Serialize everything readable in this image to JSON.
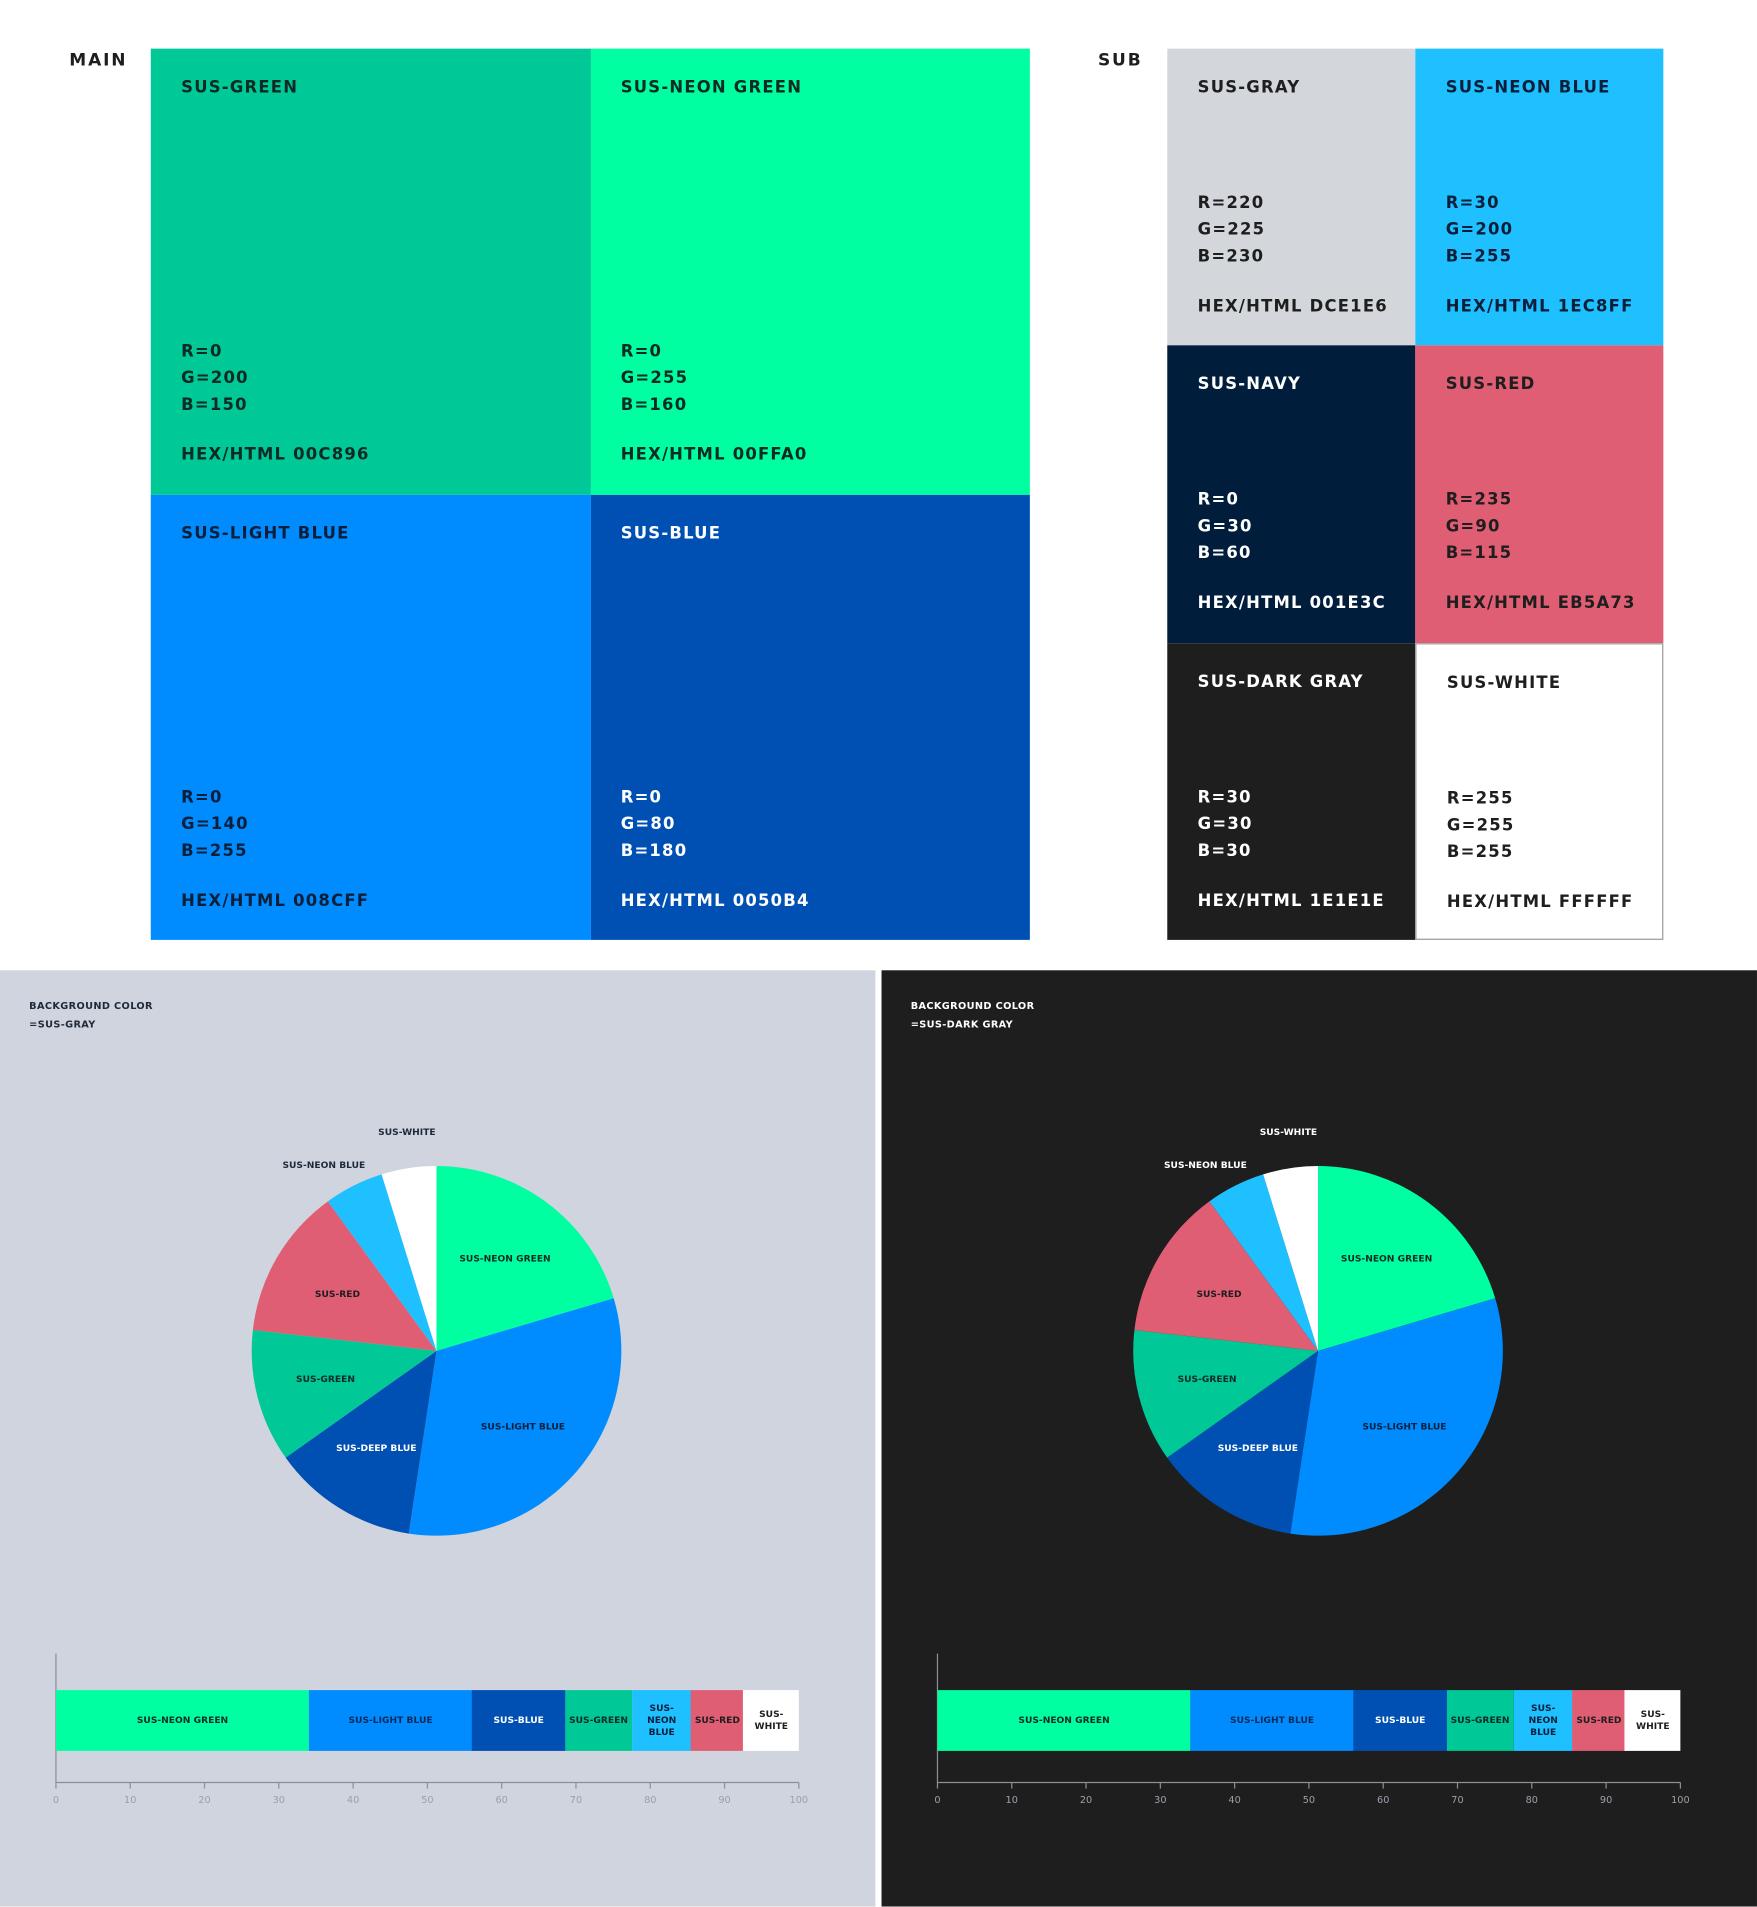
{
  "main": {
    "label": "MAIN",
    "tiles": [
      {
        "name": "SUS-GREEN",
        "r": "R=0",
        "g": "G=200",
        "b": "B=150",
        "hex": "HEX/HTML 00C896",
        "color": "#00C896",
        "text": "#0d2a24"
      },
      {
        "name": "SUS-NEON GREEN",
        "r": "R=0",
        "g": "G=255",
        "b": "B=160",
        "hex": "HEX/HTML 00FFA0",
        "color": "#00FFA0",
        "text": "#0d2a24"
      },
      {
        "name": "SUS-LIGHT BLUE",
        "r": "R=0",
        "g": "G=140",
        "b": "B=255",
        "hex": "HEX/HTML 008CFF",
        "color": "#008CFF",
        "text": "#0b1f3a"
      },
      {
        "name": "SUS-BLUE",
        "r": "R=0",
        "g": "G=80",
        "b": "B=180",
        "hex": "HEX/HTML 0050B4",
        "color": "#0050B4",
        "text": "#ffffff"
      }
    ]
  },
  "sub": {
    "label": "SUB",
    "tiles": [
      {
        "name": "SUS-GRAY",
        "r": "R=220",
        "g": "G=225",
        "b": "B=230",
        "hex": "HEX/HTML DCE1E6",
        "color": "#D3D7DC",
        "text": "#1e1e1e"
      },
      {
        "name": "SUS-NEON BLUE",
        "r": "R=30",
        "g": "G=200",
        "b": "B=255",
        "hex": "HEX/HTML 1EC8FF",
        "color": "#1EC0FF",
        "text": "#0b1f3a"
      },
      {
        "name": "SUS-NAVY",
        "r": "R=0",
        "g": "G=30",
        "b": "B=60",
        "hex": "HEX/HTML 001E3C",
        "color": "#001E3C",
        "text": "#ffffff"
      },
      {
        "name": "SUS-RED",
        "r": "R=235",
        "g": "G=90",
        "b": "B=115",
        "hex": "HEX/HTML EB5A73",
        "color": "#E05E74",
        "text": "#1e1e1e"
      },
      {
        "name": "SUS-DARK GRAY",
        "r": "R=30",
        "g": "G=30",
        "b": "B=30",
        "hex": "HEX/HTML 1E1E1E",
        "color": "#1E1E1E",
        "text": "#ffffff"
      },
      {
        "name": "SUS-WHITE",
        "r": "R=255",
        "g": "G=255",
        "b": "B=255",
        "hex": "HEX/HTML FFFFFF",
        "color": "#FFFFFF",
        "text": "#1e1e1e"
      }
    ]
  },
  "panels": [
    {
      "note1": "BACKGROUND COLOR",
      "note2": "=SUS-GRAY",
      "bg": "#CFD4DE",
      "note_color": "#1e2a3a",
      "outside_label_color": "#1e2a3a"
    },
    {
      "note1": "BACKGROUND COLOR",
      "note2": "=SUS-DARK GRAY",
      "bg": "#1E1E1E",
      "note_color": "#ffffff",
      "outside_label_color": "#ffffff"
    }
  ],
  "chart_data": [
    {
      "type": "pie",
      "start": "12 o'clock",
      "direction": "clockwise",
      "slices": [
        {
          "label": "SUS-NEON GREEN",
          "value": 20.4,
          "color": "#00FFA0",
          "text": "#0d2a24"
        },
        {
          "label": "SUS-LIGHT BLUE",
          "value": 32,
          "color": "#008CFF",
          "text": "#0b1f3a"
        },
        {
          "label": "SUS-DEEP BLUE",
          "value": 12.8,
          "color": "#0050B4",
          "text": "#ffffff"
        },
        {
          "label": "SUS-GREEN",
          "value": 11.6,
          "color": "#00C896",
          "text": "#0d2a24"
        },
        {
          "label": "SUS-RED",
          "value": 13.2,
          "color": "#E05E74",
          "text": "#1e1e1e"
        },
        {
          "label": "SUS-NEON BLUE",
          "value": 5.2,
          "color": "#1EC0FF",
          "text": "#1e1e1e"
        },
        {
          "label": "SUS-WHITE",
          "value": 4.8,
          "color": "#FFFFFF",
          "text": "#1e1e1e"
        }
      ]
    },
    {
      "type": "bar",
      "orientation": "horizontal-stacked",
      "xlim": [
        0,
        100
      ],
      "ticks": [
        "0",
        "10",
        "20",
        "30",
        "40",
        "50",
        "60",
        "70",
        "80",
        "90",
        "100"
      ],
      "segments": [
        {
          "label": "SUS-NEON GREEN",
          "value": 34,
          "color": "#00FFA0",
          "text": "#0d2a24"
        },
        {
          "label": "SUS-LIGHT BLUE",
          "value": 22,
          "color": "#008CFF",
          "text": "#0b2a5a"
        },
        {
          "label": "SUS-BLUE",
          "value": 12.5,
          "color": "#0050B4",
          "text": "#ffffff"
        },
        {
          "label": "SUS-GREEN",
          "value": 9,
          "color": "#00C896",
          "text": "#0d2a24"
        },
        {
          "label": "SUS-NEON BLUE",
          "value": 8,
          "color": "#1EC0FF",
          "text": "#0b1f3a"
        },
        {
          "label": "SUS-RED",
          "value": 7,
          "color": "#E05E74",
          "text": "#1e1e1e"
        },
        {
          "label": "SUS-WHITE",
          "value": 7.5,
          "color": "#FFFFFF",
          "text": "#1e1e1e"
        }
      ]
    }
  ]
}
